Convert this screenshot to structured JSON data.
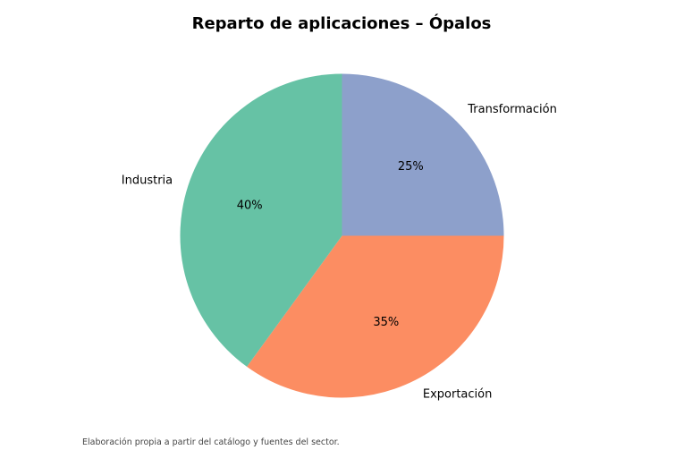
{
  "chart_data": {
    "type": "pie",
    "title": "Reparto de aplicaciones – Ópalos",
    "categories": [
      "Transformación",
      "Exportación",
      "Industria"
    ],
    "values": [
      25,
      35,
      40
    ],
    "percent_labels": [
      "25%",
      "35%",
      "40%"
    ],
    "colors": [
      "#8DA0CB",
      "#FC8D62",
      "#66C2A5"
    ],
    "start_angle_deg": 90,
    "direction": "clockwise",
    "legend": "none"
  },
  "footer": {
    "note": "Elaboración propia a partir del catálogo y fuentes del sector."
  }
}
